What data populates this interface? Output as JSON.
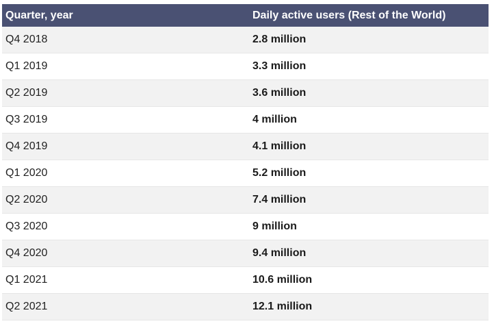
{
  "chart_data": {
    "type": "table",
    "columns": [
      "Quarter, year",
      "Daily active users (Rest of the World)"
    ],
    "rows": [
      {
        "quarter": "Q4 2018",
        "users": "2.8 million",
        "value": 2.8
      },
      {
        "quarter": "Q1 2019",
        "users": "3.3 million",
        "value": 3.3
      },
      {
        "quarter": "Q2 2019",
        "users": "3.6 million",
        "value": 3.6
      },
      {
        "quarter": "Q3 2019",
        "users": "4 million",
        "value": 4
      },
      {
        "quarter": "Q4 2019",
        "users": "4.1 million",
        "value": 4.1
      },
      {
        "quarter": "Q1 2020",
        "users": "5.2 million",
        "value": 5.2
      },
      {
        "quarter": "Q2 2020",
        "users": "7.4 million",
        "value": 7.4
      },
      {
        "quarter": "Q3 2020",
        "users": "9 million",
        "value": 9
      },
      {
        "quarter": "Q4 2020",
        "users": "9.4 million",
        "value": 9.4
      },
      {
        "quarter": "Q1 2021",
        "users": "10.6 million",
        "value": 10.6
      },
      {
        "quarter": "Q2 2021",
        "users": "12.1 million",
        "value": 12.1
      }
    ]
  },
  "colors": {
    "header_bg": "#4a5173",
    "row_alt": "#f2f2f2"
  }
}
